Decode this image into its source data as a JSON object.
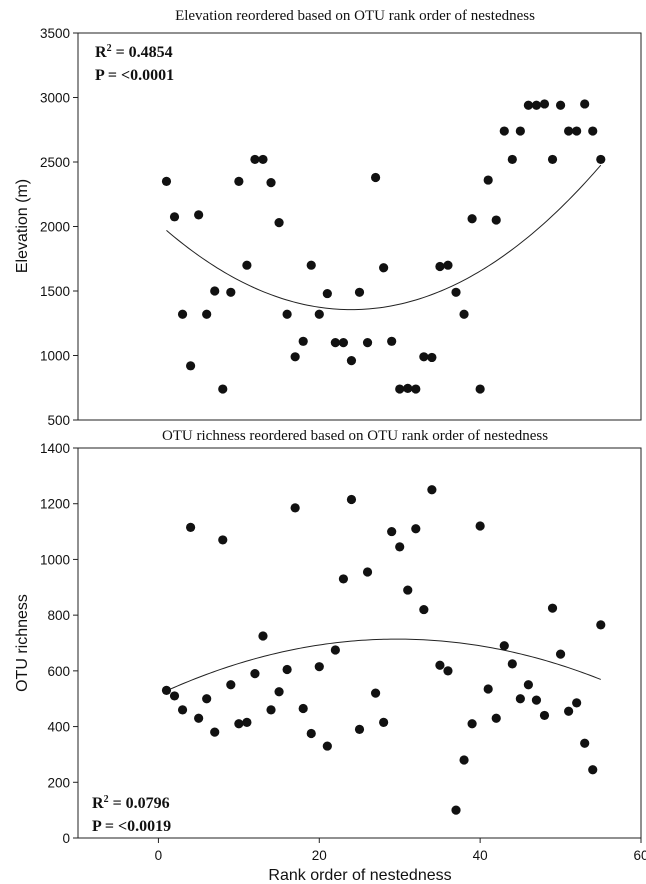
{
  "chart_data": [
    {
      "type": "scatter",
      "title": "Elevation  reordered based on OTU rank order of nestedness",
      "xlabel": "",
      "ylabel": "Elevation (m)",
      "xlim": [
        -10,
        60
      ],
      "ylim": [
        500,
        3500
      ],
      "xticks": [],
      "yticks": [
        500,
        1000,
        1500,
        2000,
        2500,
        3000,
        3500
      ],
      "grid": false,
      "stats": {
        "r2_label": "R",
        "r2_sup": "2",
        "r2_value": " = 0.4854",
        "p": "P = <0.0001",
        "position": "top-left"
      },
      "fit": {
        "type": "quadratic",
        "x_range": [
          1,
          55
        ],
        "coefficients": [
          2024.5,
          -55.8,
          1.1636
        ]
      },
      "series": [
        {
          "x": [
            1,
            2,
            3,
            4,
            5,
            6,
            7,
            8,
            9,
            10,
            11,
            12,
            13,
            14,
            15,
            16,
            17,
            18,
            19,
            20,
            21,
            22,
            23,
            24,
            25,
            26,
            27,
            28,
            29,
            30,
            31,
            32,
            33,
            34,
            35,
            36,
            37,
            38,
            39,
            40,
            41,
            42,
            43,
            44,
            45,
            46,
            47,
            48,
            49,
            50,
            51,
            52,
            53,
            54,
            55
          ],
          "values": [
            2350,
            2075,
            1320,
            920,
            2090,
            1320,
            1500,
            740,
            1490,
            2350,
            1700,
            2520,
            2520,
            2340,
            2030,
            1320,
            990,
            1110,
            1700,
            1320,
            1480,
            1100,
            1100,
            960,
            1490,
            1100,
            2380,
            1680,
            1110,
            740,
            745,
            740,
            990,
            985,
            1690,
            1700,
            1490,
            1320,
            2060,
            740,
            2360,
            2050,
            2740,
            2520,
            2740,
            2940,
            2940,
            2950,
            2520,
            2940,
            2740,
            2740,
            2950,
            2740,
            2520
          ]
        }
      ]
    },
    {
      "type": "scatter",
      "title": "OTU richness  reordered based on OTU rank order of nestedness",
      "xlabel": "Rank order of nestedness",
      "ylabel": "OTU richness",
      "xlim": [
        -10,
        60
      ],
      "ylim": [
        0,
        1400
      ],
      "xticks": [
        0,
        20,
        40,
        60
      ],
      "yticks": [
        0,
        200,
        400,
        600,
        800,
        1000,
        1200,
        1400
      ],
      "grid": false,
      "stats": {
        "r2_label": "R",
        "r2_sup": "2",
        "r2_value": " = 0.0796",
        "p": "P = <0.0019",
        "position": "bottom-left"
      },
      "fit": {
        "type": "quadratic",
        "x_range": [
          1,
          55
        ],
        "coefficients": [
          515.2,
          13.4,
          -0.2258
        ]
      },
      "series": [
        {
          "x": [
            1,
            2,
            3,
            4,
            5,
            6,
            7,
            8,
            9,
            10,
            11,
            12,
            13,
            14,
            15,
            16,
            17,
            18,
            19,
            20,
            21,
            22,
            23,
            24,
            25,
            26,
            27,
            28,
            29,
            30,
            31,
            32,
            33,
            34,
            35,
            36,
            37,
            38,
            39,
            40,
            41,
            42,
            43,
            44,
            45,
            46,
            47,
            48,
            49,
            50,
            51,
            52,
            53,
            54,
            55
          ],
          "values": [
            530,
            510,
            460,
            1115,
            430,
            500,
            380,
            1070,
            550,
            410,
            415,
            590,
            725,
            460,
            525,
            605,
            1185,
            465,
            375,
            615,
            330,
            675,
            930,
            1215,
            390,
            955,
            520,
            415,
            1100,
            1045,
            890,
            1110,
            820,
            1250,
            620,
            600,
            100,
            280,
            410,
            1120,
            535,
            430,
            690,
            625,
            500,
            550,
            495,
            440,
            825,
            660,
            455,
            485,
            340,
            245,
            765
          ]
        }
      ]
    }
  ]
}
